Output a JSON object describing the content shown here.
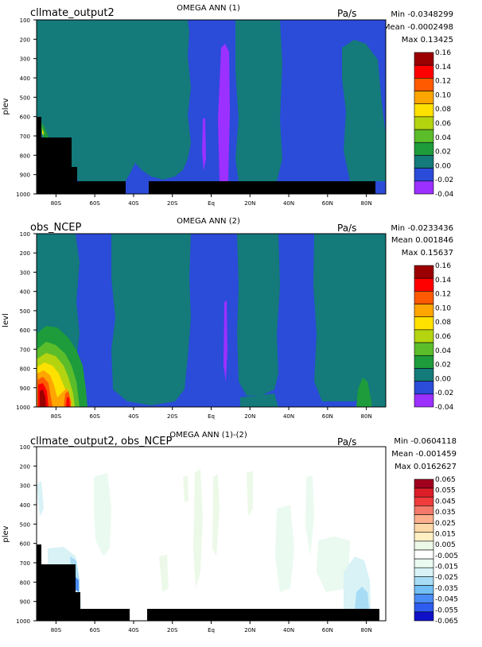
{
  "colors": {
    "land": "#000000",
    "frame": "#000000",
    "omega_levels": [
      "#9b30ff",
      "#2b4bd9",
      "#147a7a",
      "#1e9c3c",
      "#5cbd2a",
      "#b4d410",
      "#ffe100",
      "#ffa500",
      "#ff5a00",
      "#ff0000",
      "#9b0000"
    ],
    "diff_levels": [
      "#1010c8",
      "#2f5cf0",
      "#4a8cf5",
      "#72c0f5",
      "#a8dcf5",
      "#d8f2f6",
      "#eafaf0",
      "#ffffff",
      "#ecf9e8",
      "#fff0c4",
      "#ffd8a8",
      "#fcb08c",
      "#f57a6a",
      "#f03c3c",
      "#dc1e28",
      "#a0001e"
    ]
  },
  "chart_data": [
    {
      "type": "heatmap",
      "left_title": "cllmate_output2",
      "title": "OMEGA ANN (1)",
      "units": "Pa/s",
      "ylabel": "plev",
      "stats": {
        "min": "Min -0.0348299",
        "mean": "Mean -0.0002498",
        "max": "Max 0.13425"
      },
      "x_ticks": [
        "80S",
        "60S",
        "40S",
        "20S",
        "Eq",
        "20N",
        "40N",
        "60N",
        "80N"
      ],
      "y_ticks": [
        "100",
        "200",
        "300",
        "400",
        "500",
        "600",
        "700",
        "800",
        "900",
        "1000"
      ],
      "xlim": [
        -90,
        90
      ],
      "ylim": [
        100,
        1000
      ],
      "colorbar_labels": [
        "0.16",
        "0.14",
        "0.12",
        "0.10",
        "0.08",
        "0.06",
        "0.04",
        "0.02",
        "0.00",
        "-0.02",
        "-0.04"
      ]
    },
    {
      "type": "heatmap",
      "left_title": "obs_NCEP",
      "title": "OMEGA ANN (2)",
      "units": "Pa/s",
      "ylabel": "levl",
      "stats": {
        "min": "Min -0.0233436",
        "mean": "Mean 0.001846",
        "max": "Max 0.15637"
      },
      "x_ticks": [
        "80S",
        "60S",
        "40S",
        "20S",
        "Eq",
        "20N",
        "40N",
        "60N",
        "80N"
      ],
      "y_ticks": [
        "100",
        "200",
        "300",
        "400",
        "500",
        "600",
        "700",
        "800",
        "900",
        "1000"
      ],
      "xlim": [
        -90,
        90
      ],
      "ylim": [
        100,
        1000
      ],
      "colorbar_labels": [
        "0.16",
        "0.14",
        "0.12",
        "0.10",
        "0.08",
        "0.06",
        "0.04",
        "0.02",
        "0.00",
        "-0.02",
        "-0.04"
      ]
    },
    {
      "type": "heatmap",
      "left_title": "cllmate_output2, obs_NCEP",
      "title": "OMEGA ANN (1)-(2)",
      "units": "Pa/s",
      "ylabel": "plev",
      "stats": {
        "min": "Min -0.0604118",
        "mean": "Mean -0.001459",
        "max": "Max 0.0162627"
      },
      "x_ticks": [
        "80S",
        "60S",
        "40S",
        "20S",
        "Eq",
        "20N",
        "40N",
        "60N",
        "80N"
      ],
      "y_ticks": [
        "100",
        "200",
        "300",
        "400",
        "500",
        "600",
        "700",
        "800",
        "900",
        "1000"
      ],
      "xlim": [
        -90,
        90
      ],
      "ylim": [
        100,
        1000
      ],
      "colorbar_labels": [
        "0.065",
        "0.055",
        "0.045",
        "0.035",
        "0.025",
        "0.015",
        "0.005",
        "-0.005",
        "-0.015",
        "-0.025",
        "-0.035",
        "-0.045",
        "-0.055",
        "-0.065"
      ]
    }
  ]
}
